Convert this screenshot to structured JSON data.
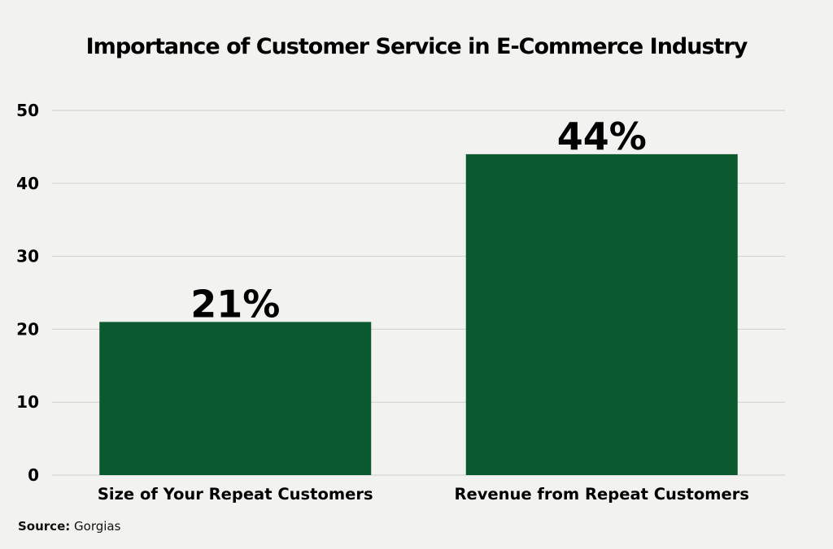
{
  "chart_data": {
    "type": "bar",
    "title": "Importance of Customer Service in E-Commerce Industry",
    "categories": [
      "Size of Your Repeat Customers",
      "Revenue from Repeat Customers"
    ],
    "values": [
      21,
      44
    ],
    "data_labels": [
      "21%",
      "44%"
    ],
    "ylim": [
      0,
      50
    ],
    "yticks": [
      0,
      10,
      20,
      30,
      40,
      50
    ],
    "grid": true,
    "legend": "none",
    "bar_color": "#0b5a2f"
  },
  "source": {
    "label": "Source:",
    "value": "Gorgias"
  }
}
